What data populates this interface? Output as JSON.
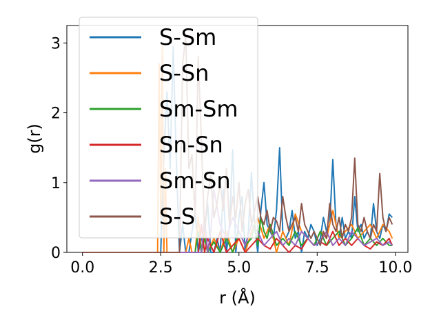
{
  "chart_data": {
    "type": "line",
    "xlabel": "r (Å)",
    "ylabel": "g(r)",
    "xlim": [
      -0.5,
      10.4
    ],
    "ylim": [
      0,
      3.25
    ],
    "xticks": [
      0.0,
      2.5,
      5.0,
      7.5,
      10.0
    ],
    "xtick_labels": [
      "0.0",
      "2.5",
      "5.0",
      "7.5",
      "10.0"
    ],
    "yticks": [
      0,
      1,
      2,
      3
    ],
    "ytick_labels": [
      "0",
      "1",
      "2",
      "3"
    ],
    "grid": false,
    "legend_position": "upper-left",
    "series": [
      {
        "name": "S-Sm",
        "color": "#1f77b4",
        "x": [
          0,
          2.4,
          2.5,
          2.6,
          2.7,
          2.8,
          2.9,
          3.0,
          3.1,
          3.2,
          3.3,
          3.4,
          3.5,
          3.6,
          3.7,
          3.8,
          3.9,
          4.0,
          4.1,
          4.2,
          4.3,
          4.4,
          4.5,
          4.6,
          4.7,
          4.8,
          4.9,
          5.0,
          5.1,
          5.2,
          5.3,
          5.4,
          5.5,
          5.6,
          5.7,
          5.8,
          5.9,
          6.0,
          6.1,
          6.2,
          6.3,
          6.4,
          6.5,
          6.6,
          6.7,
          6.8,
          6.9,
          7.0,
          7.1,
          7.2,
          7.3,
          7.4,
          7.5,
          7.6,
          7.7,
          7.8,
          7.9,
          8.0,
          8.1,
          8.2,
          8.3,
          8.4,
          8.5,
          8.6,
          8.7,
          8.8,
          8.9,
          9.0,
          9.1,
          9.2,
          9.3,
          9.4,
          9.5,
          9.6,
          9.7,
          9.8,
          9.9
        ],
        "y": [
          0,
          0,
          0,
          1.4,
          2.3,
          1.2,
          2.95,
          1.3,
          0,
          0.4,
          0,
          0,
          0.3,
          0.6,
          0,
          0.2,
          0.3,
          0.7,
          0,
          0,
          0.2,
          0,
          0.9,
          0,
          0.4,
          1.47,
          0,
          0.5,
          0.8,
          0,
          0.3,
          1.15,
          0.4,
          0,
          0.6,
          1.0,
          0.4,
          0.3,
          0.2,
          0.6,
          1.5,
          0.3,
          0.2,
          0.3,
          0.6,
          0.2,
          0.3,
          0,
          0.3,
          0.2,
          0.4,
          0.3,
          0.1,
          0.2,
          0.5,
          0.3,
          0.4,
          1.33,
          0.4,
          0.2,
          0.5,
          0.2,
          0.3,
          0.2,
          0.8,
          0.3,
          0.4,
          0.2,
          0.3,
          0.2,
          0.7,
          0.3,
          0.2,
          0.4,
          0.3,
          0.55,
          0.5
        ]
      },
      {
        "name": "S-Sn",
        "color": "#ff7f0e",
        "x": [
          0,
          2.4,
          2.45,
          2.5,
          2.55,
          2.6,
          2.65,
          2.7,
          2.8,
          2.9,
          3.0,
          3.1,
          3.2,
          3.3,
          3.4,
          3.5,
          3.6,
          3.7,
          3.8,
          3.9,
          4.0,
          4.2,
          4.4,
          4.6,
          4.8,
          5.0,
          5.2,
          5.4,
          5.6,
          5.8,
          6.0,
          6.2,
          6.4,
          6.6,
          6.8,
          7.0,
          7.2,
          7.4,
          7.6,
          7.8,
          8.0,
          8.2,
          8.4,
          8.6,
          8.8,
          9.0,
          9.2,
          9.4,
          9.6,
          9.8,
          9.9
        ],
        "y": [
          0,
          0,
          2.7,
          0.5,
          2.95,
          0,
          1.2,
          0,
          0,
          0,
          0,
          0,
          0,
          0,
          0.2,
          0,
          0,
          0.5,
          0,
          0.3,
          0,
          0.2,
          0,
          0.3,
          0,
          0.2,
          0,
          0.3,
          0.5,
          0.2,
          0.4,
          0,
          0.3,
          0.1,
          0.55,
          0.3,
          0.2,
          0.1,
          0.3,
          0.2,
          0.6,
          0.2,
          0.3,
          0.4,
          0.2,
          0.3,
          0.4,
          0.2,
          0.4,
          0.3,
          0.2
        ]
      },
      {
        "name": "Sm-Sm",
        "color": "#2ca02c",
        "x": [
          0,
          3.6,
          3.7,
          3.8,
          3.9,
          4.0,
          4.2,
          4.4,
          4.6,
          4.8,
          5.0,
          5.2,
          5.4,
          5.5,
          5.6,
          5.7,
          5.8,
          5.9,
          6.0,
          6.2,
          6.4,
          6.6,
          6.8,
          7.0,
          7.2,
          7.4,
          7.6,
          7.8,
          8.0,
          8.2,
          8.4,
          8.6,
          8.8,
          9.0,
          9.2,
          9.4,
          9.6,
          9.8,
          9.9
        ],
        "y": [
          0,
          0,
          0.3,
          0,
          0.2,
          0,
          0.15,
          0,
          0.2,
          0,
          0.3,
          0.1,
          0.2,
          0.4,
          0.1,
          0.5,
          0.3,
          0.2,
          0.4,
          0.1,
          0.2,
          0.1,
          0.3,
          0.1,
          0.2,
          0.1,
          0.3,
          0.1,
          0.2,
          0.3,
          0.1,
          0.2,
          0.35,
          0.1,
          0.2,
          0.1,
          0.2,
          0.1,
          0.1
        ]
      },
      {
        "name": "Sn-Sn",
        "color": "#d62728",
        "x": [
          0,
          3.7,
          3.8,
          3.9,
          4.0,
          4.2,
          4.4,
          4.6,
          4.8,
          5.0,
          5.2,
          5.4,
          5.6,
          5.8,
          6.0,
          6.2,
          6.4,
          6.6,
          6.8,
          7.0,
          7.2,
          7.4,
          7.6,
          7.8,
          8.0,
          8.2,
          8.4,
          8.6,
          8.8,
          9.0,
          9.2,
          9.4,
          9.6,
          9.8,
          9.9
        ],
        "y": [
          0,
          0,
          0.4,
          0,
          0.2,
          0,
          0.3,
          0,
          0.1,
          0.2,
          0,
          0.1,
          0.2,
          0.1,
          0.05,
          0.2,
          0.1,
          0,
          0.1,
          0.05,
          0.2,
          0.1,
          0.15,
          0.1,
          0.3,
          0.1,
          0.2,
          0.1,
          0.2,
          0.1,
          0.05,
          0.15,
          0.1,
          0.2,
          0.1
        ]
      },
      {
        "name": "Sm-Sn",
        "color": "#9467bd",
        "x": [
          0,
          3.8,
          3.9,
          4.0,
          4.1,
          4.2,
          4.4,
          4.6,
          4.8,
          5.0,
          5.2,
          5.4,
          5.6,
          5.8,
          6.0,
          6.2,
          6.4,
          6.6,
          6.8,
          7.0,
          7.2,
          7.4,
          7.6,
          7.8,
          8.0,
          8.2,
          8.4,
          8.6,
          8.8,
          9.0,
          9.2,
          9.4,
          9.6,
          9.8,
          9.9
        ],
        "y": [
          0,
          0,
          0.5,
          0,
          0.3,
          0.9,
          0.4,
          0.2,
          0.5,
          0.3,
          0.1,
          0.4,
          0.3,
          0.1,
          0.2,
          0.3,
          0.1,
          0.2,
          0.1,
          0.3,
          0.2,
          0.1,
          0.15,
          0.3,
          0.1,
          0.2,
          0.1,
          0.3,
          0.2,
          0.1,
          0.15,
          0.2,
          0.1,
          0.15,
          0.1
        ]
      },
      {
        "name": "S-S",
        "color": "#8c564b",
        "x": [
          0,
          3.1,
          3.2,
          3.3,
          3.4,
          3.5,
          3.6,
          3.7,
          3.8,
          3.9,
          4.0,
          4.1,
          4.2,
          4.3,
          4.4,
          4.5,
          4.6,
          4.7,
          4.8,
          4.9,
          5.0,
          5.1,
          5.2,
          5.3,
          5.4,
          5.5,
          5.6,
          5.7,
          5.8,
          5.9,
          6.0,
          6.1,
          6.2,
          6.3,
          6.4,
          6.5,
          6.6,
          6.7,
          6.8,
          6.9,
          7.0,
          7.1,
          7.2,
          7.3,
          7.4,
          7.5,
          7.6,
          7.7,
          7.8,
          7.9,
          8.0,
          8.1,
          8.2,
          8.3,
          8.4,
          8.5,
          8.6,
          8.7,
          8.8,
          8.9,
          9.0,
          9.1,
          9.2,
          9.3,
          9.4,
          9.5,
          9.6,
          9.7,
          9.8,
          9.9
        ],
        "y": [
          0,
          0,
          2.7,
          3.1,
          1.2,
          1.4,
          0.5,
          2.8,
          1.6,
          0.3,
          0.8,
          1.1,
          0.5,
          0.7,
          1.0,
          0.6,
          1.2,
          0.4,
          0.8,
          0.5,
          1.0,
          0.3,
          0.7,
          0.9,
          0.4,
          0.6,
          0.8,
          0.5,
          0.4,
          0.6,
          0.3,
          0.5,
          0.45,
          0.3,
          0.8,
          0.5,
          0.3,
          0.4,
          0.5,
          0.3,
          0.7,
          0.4,
          0.3,
          0.2,
          0.3,
          0.2,
          0.1,
          0.3,
          0.2,
          0.7,
          0.4,
          0.3,
          0.5,
          0.2,
          0.4,
          0.3,
          0.5,
          1.35,
          0.4,
          0.3,
          0.5,
          0.3,
          0.2,
          0.4,
          0.3,
          1.13,
          0.5,
          0.3,
          0.5,
          0.4
        ]
      }
    ]
  }
}
